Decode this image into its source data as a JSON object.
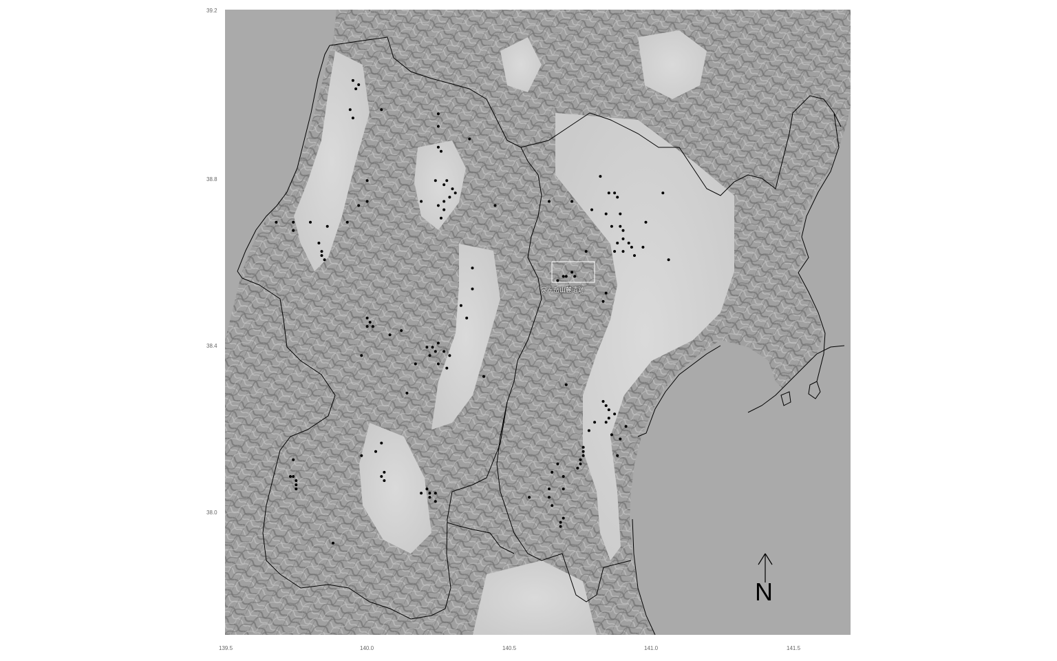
{
  "map": {
    "colors": {
      "sea": "#a9a9a9",
      "plain": "#d2d2d2",
      "mountain": "#9a9a9a",
      "ridge": "#7d7d7d",
      "boundary": "#000000",
      "site": "#000000",
      "highlight_box": "#ffffff"
    },
    "x_ticks": [
      {
        "label": "139.5"
      },
      {
        "label": "140.0"
      },
      {
        "label": "140.5"
      },
      {
        "label": "141.0"
      },
      {
        "label": "141.5"
      }
    ],
    "y_ticks": [
      {
        "label": "39.2"
      },
      {
        "label": "38.8"
      },
      {
        "label": "38.4"
      },
      {
        "label": "38.0"
      }
    ],
    "site_label": "泉ヶ岳山麓遺跡",
    "north_arrow": {
      "label": "N",
      "icon": "north-arrow-icon"
    },
    "sites": [
      [
        139.95,
        39.03
      ],
      [
        139.97,
        39.02
      ],
      [
        139.96,
        39.01
      ],
      [
        140.05,
        38.96
      ],
      [
        140.25,
        38.95
      ],
      [
        139.94,
        38.96
      ],
      [
        139.95,
        38.94
      ],
      [
        140.25,
        38.92
      ],
      [
        140.36,
        38.89
      ],
      [
        140.25,
        38.87
      ],
      [
        140.26,
        38.86
      ],
      [
        140.24,
        38.79
      ],
      [
        140.28,
        38.79
      ],
      [
        140.27,
        38.78
      ],
      [
        140.3,
        38.77
      ],
      [
        140.31,
        38.76
      ],
      [
        140.29,
        38.75
      ],
      [
        140.27,
        38.74
      ],
      [
        140.19,
        38.74
      ],
      [
        140.25,
        38.73
      ],
      [
        140.27,
        38.72
      ],
      [
        140.26,
        38.7
      ],
      [
        140.0,
        38.79
      ],
      [
        140.0,
        38.74
      ],
      [
        139.97,
        38.73
      ],
      [
        139.68,
        38.69
      ],
      [
        139.74,
        38.69
      ],
      [
        139.8,
        38.69
      ],
      [
        139.86,
        38.68
      ],
      [
        139.93,
        38.69
      ],
      [
        139.74,
        38.67
      ],
      [
        139.83,
        38.64
      ],
      [
        139.84,
        38.62
      ],
      [
        139.84,
        38.61
      ],
      [
        139.85,
        38.6
      ],
      [
        140.45,
        38.73
      ],
      [
        140.64,
        38.74
      ],
      [
        140.72,
        38.74
      ],
      [
        140.82,
        38.8
      ],
      [
        140.85,
        38.76
      ],
      [
        140.87,
        38.76
      ],
      [
        140.88,
        38.75
      ],
      [
        140.79,
        38.72
      ],
      [
        140.84,
        38.71
      ],
      [
        140.89,
        38.71
      ],
      [
        140.86,
        38.68
      ],
      [
        140.89,
        38.68
      ],
      [
        140.9,
        38.67
      ],
      [
        140.9,
        38.65
      ],
      [
        140.88,
        38.64
      ],
      [
        140.92,
        38.64
      ],
      [
        140.93,
        38.63
      ],
      [
        140.97,
        38.63
      ],
      [
        140.87,
        38.62
      ],
      [
        140.9,
        38.62
      ],
      [
        140.94,
        38.61
      ],
      [
        140.98,
        38.69
      ],
      [
        141.04,
        38.76
      ],
      [
        141.06,
        38.6
      ],
      [
        140.77,
        38.62
      ],
      [
        140.69,
        38.56
      ],
      [
        140.7,
        38.56
      ],
      [
        140.72,
        38.57
      ],
      [
        140.73,
        38.56
      ],
      [
        140.67,
        38.55
      ],
      [
        140.84,
        38.52
      ],
      [
        140.83,
        38.5
      ],
      [
        140.37,
        38.58
      ],
      [
        140.37,
        38.53
      ],
      [
        140.33,
        38.49
      ],
      [
        140.35,
        38.46
      ],
      [
        140.0,
        38.46
      ],
      [
        140.01,
        38.45
      ],
      [
        140.0,
        38.44
      ],
      [
        140.02,
        38.44
      ],
      [
        140.08,
        38.42
      ],
      [
        140.12,
        38.43
      ],
      [
        140.21,
        38.39
      ],
      [
        140.23,
        38.39
      ],
      [
        140.25,
        38.4
      ],
      [
        140.24,
        38.38
      ],
      [
        140.27,
        38.38
      ],
      [
        140.22,
        38.37
      ],
      [
        140.29,
        38.37
      ],
      [
        140.17,
        38.35
      ],
      [
        140.25,
        38.35
      ],
      [
        140.28,
        38.34
      ],
      [
        139.98,
        38.37
      ],
      [
        140.14,
        38.28
      ],
      [
        140.41,
        38.32
      ],
      [
        140.7,
        38.3
      ],
      [
        140.83,
        38.26
      ],
      [
        140.84,
        38.25
      ],
      [
        140.85,
        38.24
      ],
      [
        140.87,
        38.23
      ],
      [
        140.85,
        38.22
      ],
      [
        140.8,
        38.21
      ],
      [
        140.84,
        38.21
      ],
      [
        140.78,
        38.19
      ],
      [
        140.86,
        38.18
      ],
      [
        140.89,
        38.17
      ],
      [
        140.91,
        38.2
      ],
      [
        140.88,
        38.13
      ],
      [
        140.76,
        38.15
      ],
      [
        140.76,
        38.14
      ],
      [
        140.76,
        38.13
      ],
      [
        140.75,
        38.12
      ],
      [
        140.75,
        38.11
      ],
      [
        140.74,
        38.1
      ],
      [
        140.67,
        38.11
      ],
      [
        140.65,
        38.09
      ],
      [
        140.69,
        38.08
      ],
      [
        140.64,
        38.05
      ],
      [
        140.69,
        38.05
      ],
      [
        140.64,
        38.03
      ],
      [
        140.57,
        38.03
      ],
      [
        140.65,
        38.01
      ],
      [
        140.69,
        37.98
      ],
      [
        140.68,
        37.97
      ],
      [
        140.68,
        37.96
      ],
      [
        140.05,
        38.16
      ],
      [
        140.03,
        38.14
      ],
      [
        139.98,
        38.13
      ],
      [
        140.06,
        38.09
      ],
      [
        140.05,
        38.08
      ],
      [
        140.06,
        38.07
      ],
      [
        140.21,
        38.05
      ],
      [
        140.22,
        38.04
      ],
      [
        140.24,
        38.04
      ],
      [
        140.19,
        38.04
      ],
      [
        140.22,
        38.03
      ],
      [
        140.24,
        38.02
      ],
      [
        139.74,
        38.12
      ],
      [
        139.73,
        38.08
      ],
      [
        139.74,
        38.08
      ],
      [
        139.75,
        38.07
      ],
      [
        139.75,
        38.06
      ],
      [
        139.75,
        38.05
      ],
      [
        139.88,
        37.92
      ]
    ]
  }
}
